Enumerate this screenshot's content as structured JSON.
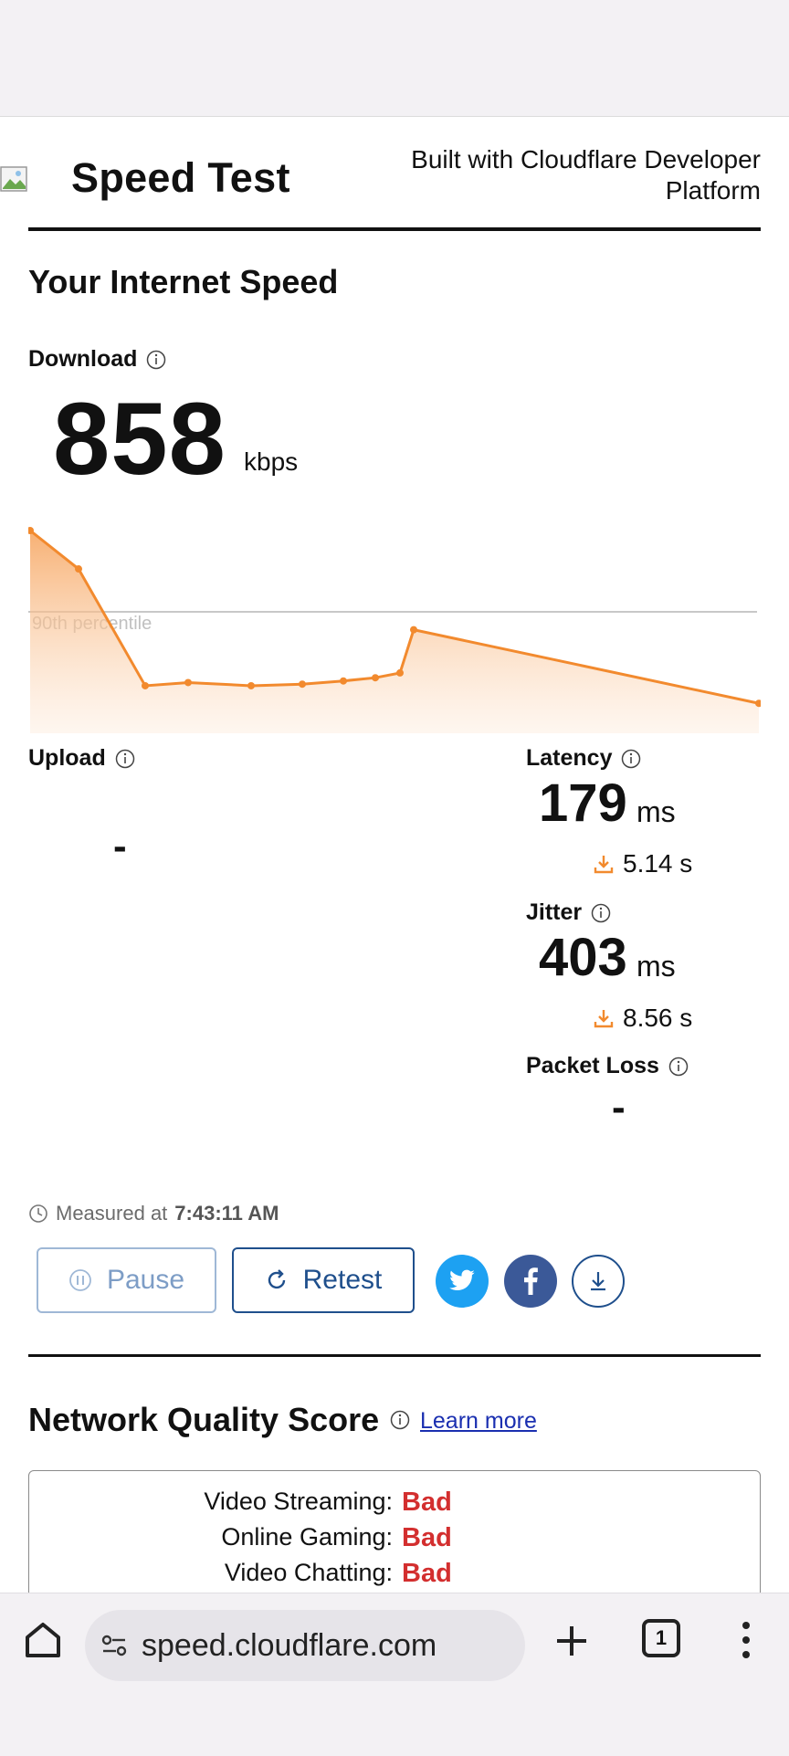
{
  "header": {
    "title": "Speed Test",
    "built_with": "Built with Cloudflare Developer Platform"
  },
  "section_title": "Your Internet Speed",
  "download": {
    "label": "Download",
    "value": "858",
    "unit": "kbps"
  },
  "chart_data": {
    "type": "area",
    "series": [
      {
        "values": [
          1210,
          970,
          240,
          260,
          240,
          250,
          270,
          290,
          320,
          590,
          130
        ]
      }
    ],
    "reference_line_label": "90th percentile",
    "colors": {
      "line": "#f28a2e",
      "fill": "#fbd1ac",
      "reference": "#c8c8c8"
    }
  },
  "upload": {
    "label": "Upload",
    "value": "-"
  },
  "latency": {
    "label": "Latency",
    "value": "179",
    "unit": "ms",
    "loaded": "5.14 s"
  },
  "jitter": {
    "label": "Jitter",
    "value": "403",
    "unit": "ms",
    "loaded": "8.56 s"
  },
  "packet_loss": {
    "label": "Packet Loss",
    "value": "-"
  },
  "measured": {
    "prefix": "Measured at",
    "time": "7:43:11 AM"
  },
  "buttons": {
    "pause": "Pause",
    "retest": "Retest"
  },
  "network_quality": {
    "title": "Network Quality Score",
    "learn_more": "Learn more",
    "rows": [
      {
        "label": "Video Streaming:",
        "value": "Bad"
      },
      {
        "label": "Online Gaming:",
        "value": "Bad"
      },
      {
        "label": "Video Chatting:",
        "value": "Bad"
      }
    ]
  },
  "browser": {
    "url": "speed.cloudflare.com",
    "tab_count": "1"
  },
  "colors": {
    "accent_orange": "#f28a2e",
    "bad_red": "#d32f2f",
    "link_blue": "#1a2fb0",
    "button_blue": "#1f4f8c",
    "twitter_blue": "#1da1f2",
    "facebook_blue": "#3b5998"
  }
}
